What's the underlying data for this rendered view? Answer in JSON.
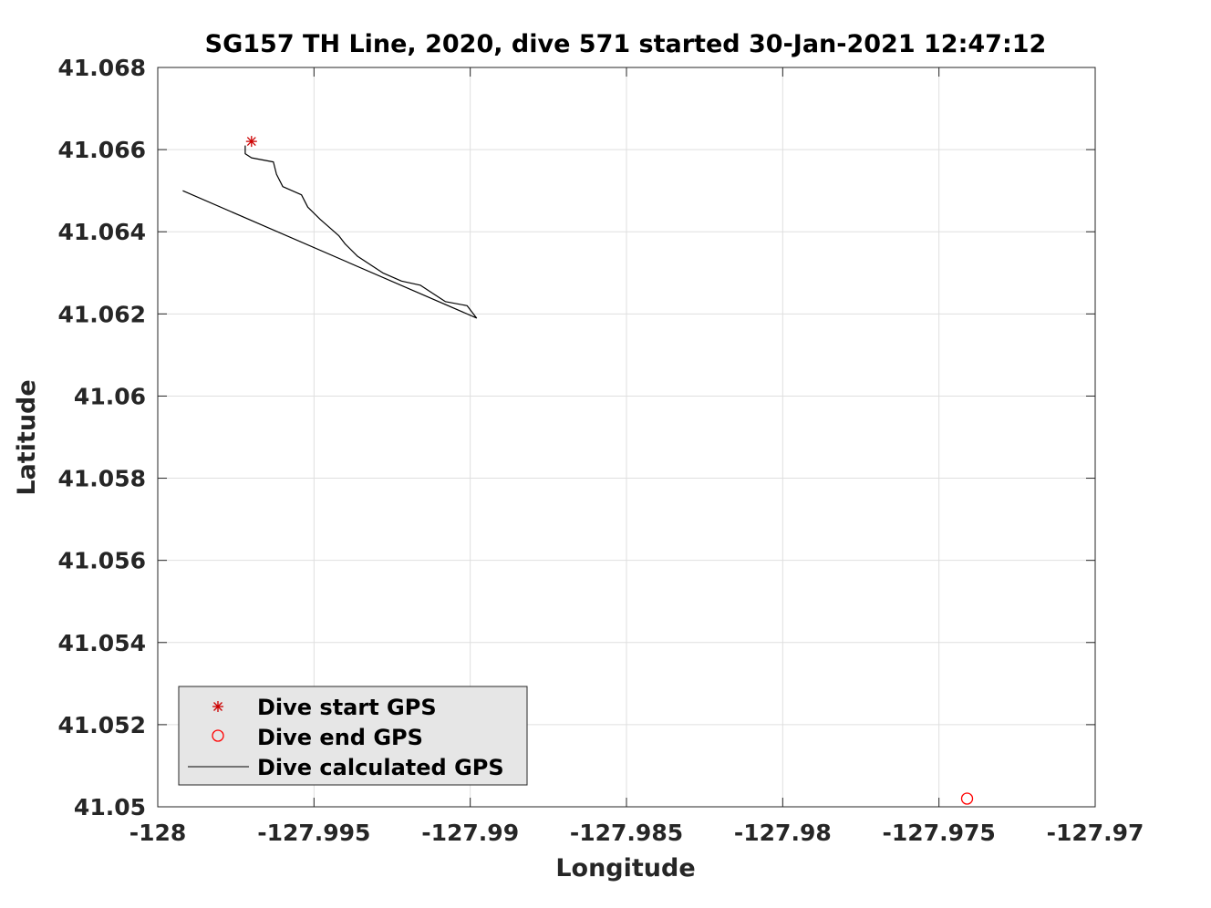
{
  "chart_data": {
    "type": "line",
    "title": "SG157 TH Line, 2020, dive 571 started 30-Jan-2021 12:47:12",
    "xlabel": "Longitude",
    "ylabel": "Latitude",
    "xlim": [
      -128,
      -127.97
    ],
    "ylim": [
      41.05,
      41.068
    ],
    "x_ticks": [
      -128,
      -127.995,
      -127.99,
      -127.985,
      -127.98,
      -127.975,
      -127.97
    ],
    "x_tick_labels": [
      "-128",
      "-127.995",
      "-127.99",
      "-127.985",
      "-127.98",
      "-127.975",
      "-127.97"
    ],
    "y_ticks": [
      41.05,
      41.052,
      41.054,
      41.056,
      41.058,
      41.06,
      41.062,
      41.064,
      41.066,
      41.068
    ],
    "y_tick_labels": [
      "41.05",
      "41.052",
      "41.054",
      "41.056",
      "41.058",
      "41.06",
      "41.062",
      "41.064",
      "41.066",
      "41.068"
    ],
    "grid": true,
    "legend_position": "bottom-left",
    "series": [
      {
        "name": "Dive start GPS",
        "marker": "asterisk",
        "color": "#cc0000",
        "points": [
          {
            "x": -127.997,
            "y": 41.0662
          }
        ]
      },
      {
        "name": "Dive end GPS",
        "marker": "circle",
        "color": "#ff0000",
        "points": [
          {
            "x": -127.9741,
            "y": 41.0502
          }
        ]
      },
      {
        "name": "Dive calculated GPS",
        "marker": "line",
        "color": "#000000",
        "points": [
          {
            "x": -127.9972,
            "y": 41.0661
          },
          {
            "x": -127.9972,
            "y": 41.0659
          },
          {
            "x": -127.997,
            "y": 41.0658
          },
          {
            "x": -127.9963,
            "y": 41.0657
          },
          {
            "x": -127.9962,
            "y": 41.0654
          },
          {
            "x": -127.996,
            "y": 41.0651
          },
          {
            "x": -127.9954,
            "y": 41.0649
          },
          {
            "x": -127.9952,
            "y": 41.0646
          },
          {
            "x": -127.9948,
            "y": 41.0643
          },
          {
            "x": -127.9945,
            "y": 41.0641
          },
          {
            "x": -127.9942,
            "y": 41.0639
          },
          {
            "x": -127.994,
            "y": 41.0637
          },
          {
            "x": -127.9936,
            "y": 41.0634
          },
          {
            "x": -127.9932,
            "y": 41.0632
          },
          {
            "x": -127.9928,
            "y": 41.063
          },
          {
            "x": -127.9922,
            "y": 41.0628
          },
          {
            "x": -127.9916,
            "y": 41.0627
          },
          {
            "x": -127.9912,
            "y": 41.0625
          },
          {
            "x": -127.9908,
            "y": 41.0623
          },
          {
            "x": -127.9901,
            "y": 41.0622
          },
          {
            "x": -127.9898,
            "y": 41.0619
          },
          {
            "x": -127.9992,
            "y": 41.065
          },
          {
            "x": -127.9992,
            "y": 41.065
          }
        ]
      }
    ]
  }
}
